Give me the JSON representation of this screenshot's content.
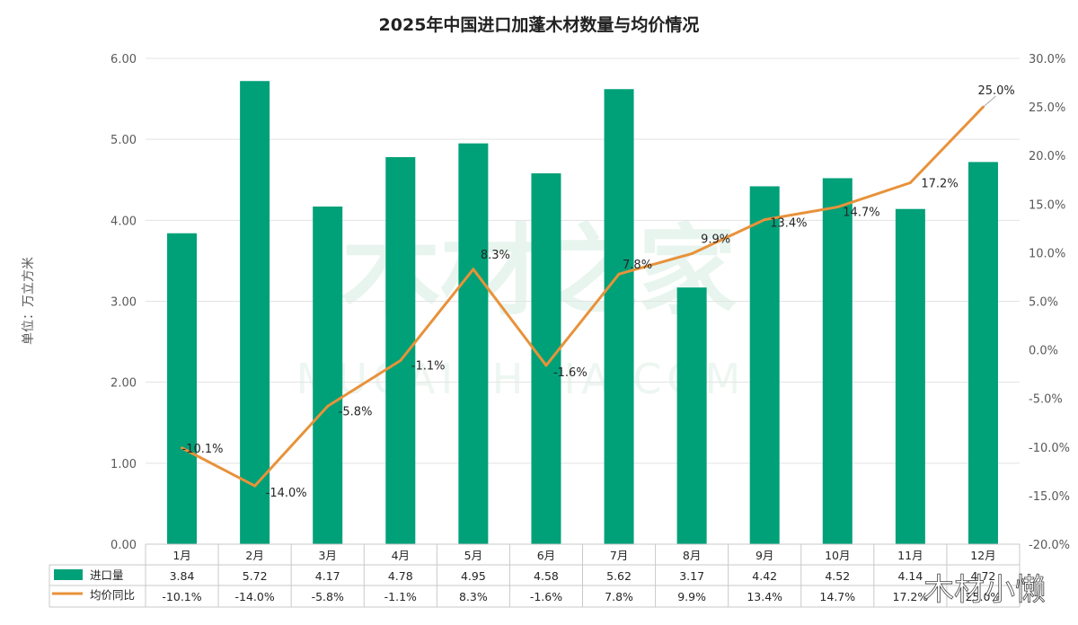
{
  "title": "2025年中国进口加蓬木材数量与均价情况",
  "unit_label": "单位：万立方米",
  "watermark": "木材之家",
  "watermark_url": "MUCAIZHIJIA.COM",
  "signature": "木材小懒",
  "colors": {
    "bar": "#00a078",
    "line": "#e8923a",
    "grid": "#e3e3e3",
    "table_border": "#c9c9c9"
  },
  "legend_icons": {
    "bar": "green-square-icon",
    "line": "orange-line-icon"
  },
  "chart_data": {
    "type": "bar",
    "title": "2025年中国进口加蓬木材数量与均价情况",
    "categories": [
      "1月",
      "2月",
      "3月",
      "4月",
      "5月",
      "6月",
      "7月",
      "8月",
      "9月",
      "10月",
      "11月",
      "12月"
    ],
    "series": [
      {
        "name": "进口量",
        "type": "bar",
        "axis": "left",
        "values": [
          3.84,
          5.72,
          4.17,
          4.78,
          4.95,
          4.58,
          5.62,
          3.17,
          4.42,
          4.52,
          4.14,
          4.72
        ],
        "value_labels": [
          "3.84",
          "5.72",
          "4.17",
          "4.78",
          "4.95",
          "4.58",
          "5.62",
          "3.17",
          "4.42",
          "4.52",
          "4.14",
          "4.72"
        ]
      },
      {
        "name": "均价同比",
        "type": "line",
        "axis": "right",
        "values": [
          -10.1,
          -14.0,
          -5.8,
          -1.1,
          8.3,
          -1.6,
          7.8,
          9.9,
          13.4,
          14.7,
          17.2,
          25.0
        ],
        "value_labels": [
          "-10.1%",
          "-14.0%",
          "-5.8%",
          "-1.1%",
          "8.3%",
          "-1.6%",
          "7.8%",
          "9.9%",
          "13.4%",
          "14.7%",
          "17.2%",
          "25.0%"
        ]
      }
    ],
    "ylabel": "单位：万立方米",
    "ylim": [
      0,
      6
    ],
    "y_ticks": [
      "0.00",
      "1.00",
      "2.00",
      "3.00",
      "4.00",
      "5.00",
      "6.00"
    ],
    "y2lim": [
      -20,
      30
    ],
    "y2_ticks": [
      "-20.0%",
      "-15.0%",
      "-10.0%",
      "-5.0%",
      "0.0%",
      "5.0%",
      "10.0%",
      "15.0%",
      "20.0%",
      "25.0%",
      "30.0%"
    ],
    "grid": true,
    "legend_placement": "data-table"
  }
}
